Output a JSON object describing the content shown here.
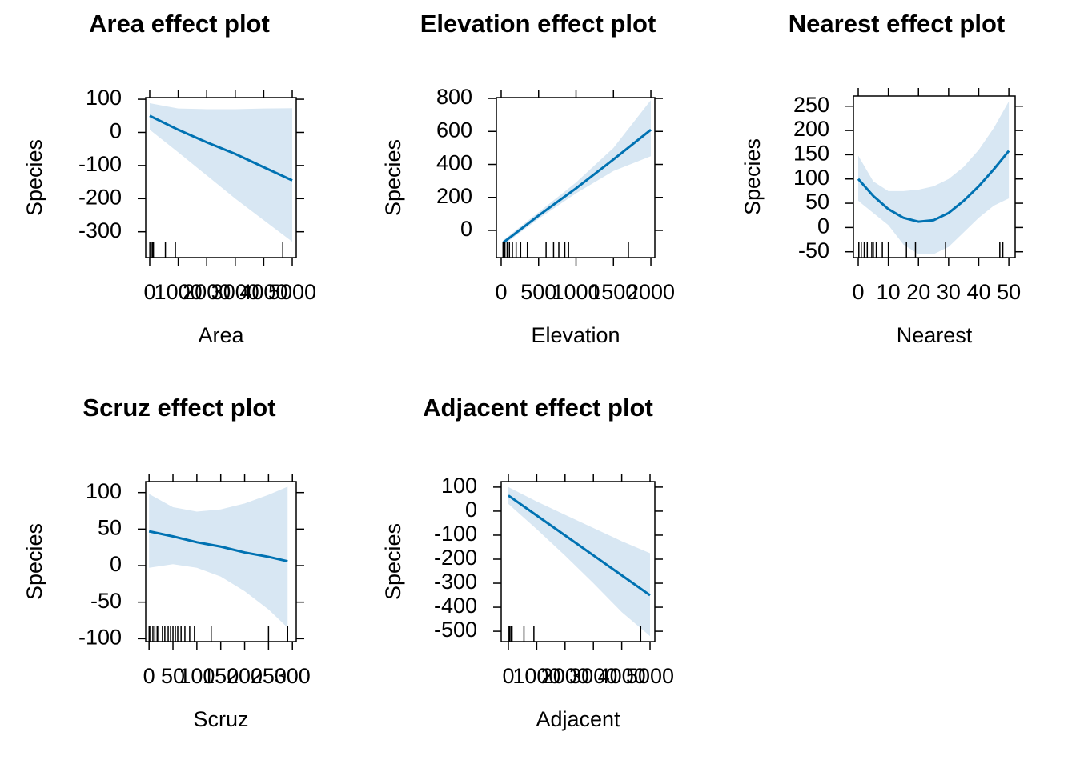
{
  "chart_data": [
    {
      "type": "line",
      "title": "Area effect plot",
      "xlabel": "Area",
      "ylabel": "Species",
      "color": "#0072b2",
      "band_color": "#d8e7f3",
      "x": [
        0,
        1000,
        2000,
        3000,
        4000,
        5000
      ],
      "values": [
        50,
        8,
        -30,
        -65,
        -105,
        -145
      ],
      "lower": [
        8,
        -60,
        -130,
        -200,
        -265,
        -330
      ],
      "upper": [
        88,
        72,
        70,
        70,
        72,
        73
      ],
      "rug": [
        5,
        50,
        100,
        130,
        550,
        900,
        4669
      ],
      "xlim": [
        -140,
        5140
      ],
      "ylim": [
        -378,
        105
      ],
      "xticks": [
        0,
        1000,
        2000,
        3000,
        4000,
        5000
      ],
      "yticks": [
        100,
        0,
        -100,
        -200,
        -300
      ]
    },
    {
      "type": "line",
      "title": "Elevation effect plot",
      "xlabel": "Elevation",
      "ylabel": "Species",
      "color": "#0072b2",
      "band_color": "#d8e7f3",
      "x": [
        25,
        500,
        1000,
        1500,
        2000
      ],
      "values": [
        -75,
        90,
        255,
        430,
        610
      ],
      "lower": [
        -90,
        70,
        225,
        360,
        450
      ],
      "upper": [
        -60,
        110,
        290,
        500,
        790
      ],
      "rug": [
        25,
        50,
        80,
        110,
        150,
        200,
        260,
        350,
        600,
        700,
        770,
        850,
        900,
        1700
      ],
      "xlim": [
        -64,
        2053
      ],
      "ylim": [
        -165,
        805
      ],
      "xticks": [
        0,
        500,
        1000,
        1500,
        2000
      ],
      "yticks": [
        0,
        200,
        400,
        600,
        800
      ]
    },
    {
      "type": "line",
      "title": "Nearest effect plot",
      "xlabel": "Nearest",
      "ylabel": "Species",
      "color": "#0072b2",
      "band_color": "#d8e7f3",
      "x": [
        0,
        5,
        10,
        15,
        20,
        25,
        30,
        35,
        40,
        45,
        50
      ],
      "values": [
        100,
        65,
        38,
        20,
        12,
        15,
        30,
        55,
        85,
        120,
        158
      ],
      "lower": [
        55,
        30,
        5,
        -35,
        -55,
        -55,
        -40,
        -10,
        20,
        45,
        60
      ],
      "upper": [
        148,
        95,
        75,
        75,
        78,
        85,
        100,
        125,
        160,
        205,
        260
      ],
      "rug": [
        0.2,
        1,
        2,
        3,
        4.5,
        5,
        6,
        8,
        10,
        16,
        19,
        29,
        47,
        48
      ],
      "xlim": [
        -1.6,
        52.1
      ],
      "ylim": [
        -62,
        271
      ],
      "xticks": [
        0,
        10,
        20,
        30,
        40,
        50
      ],
      "yticks": [
        -50,
        0,
        50,
        100,
        150,
        200,
        250
      ]
    },
    {
      "type": "line",
      "title": "Scruz effect plot",
      "xlabel": "Scruz",
      "ylabel": "Species",
      "color": "#0072b2",
      "band_color": "#d8e7f3",
      "x": [
        0,
        50,
        100,
        150,
        200,
        250,
        290
      ],
      "values": [
        47,
        40,
        32,
        26,
        18,
        12,
        6
      ],
      "lower": [
        -3,
        2,
        -3,
        -15,
        -35,
        -60,
        -85
      ],
      "upper": [
        98,
        80,
        74,
        77,
        85,
        97,
        108
      ],
      "rug": [
        0.2,
        3,
        8,
        12,
        17,
        20,
        28,
        33,
        40,
        45,
        50,
        55,
        60,
        67,
        75,
        85,
        95,
        130,
        250,
        290
      ],
      "xlim": [
        -7,
        308
      ],
      "ylim": [
        -104,
        115
      ],
      "xticks": [
        0,
        50,
        100,
        150,
        200,
        250,
        300
      ],
      "yticks": [
        -100,
        -50,
        0,
        50,
        100
      ]
    },
    {
      "type": "line",
      "title": "Adjacent effect plot",
      "xlabel": "Adjacent",
      "ylabel": "Species",
      "color": "#0072b2",
      "band_color": "#d8e7f3",
      "x": [
        0,
        1000,
        2000,
        3000,
        4000,
        5000
      ],
      "values": [
        65,
        -18,
        -101,
        -184,
        -267,
        -350
      ],
      "lower": [
        30,
        -75,
        -185,
        -300,
        -420,
        -520
      ],
      "upper": [
        100,
        40,
        -15,
        -70,
        -125,
        -175
      ],
      "rug": [
        5,
        50,
        100,
        130,
        550,
        900,
        4669
      ],
      "xlim": [
        -254,
        5169
      ],
      "ylim": [
        -543,
        123
      ],
      "xticks": [
        0,
        1000,
        2000,
        3000,
        4000,
        5000
      ],
      "yticks": [
        100,
        0,
        -100,
        -200,
        -300,
        -400,
        -500
      ]
    }
  ]
}
